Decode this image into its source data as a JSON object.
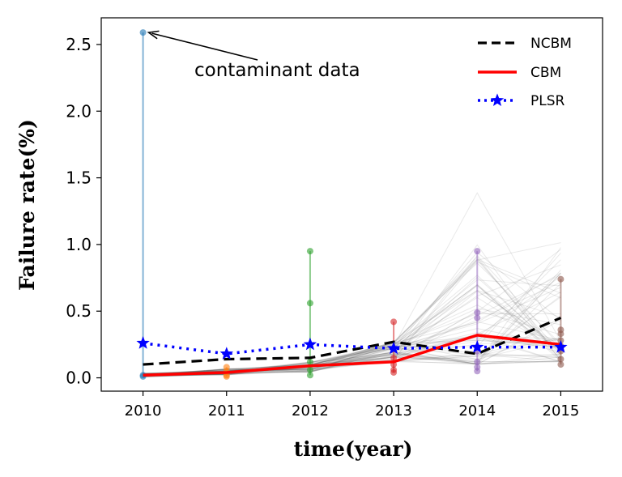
{
  "chart_data": {
    "type": "line",
    "xlabel": "time(year)",
    "ylabel": "Failure rate(%)",
    "x": [
      2010,
      2011,
      2012,
      2013,
      2014,
      2015
    ],
    "xlim": [
      2009.5,
      2015.5
    ],
    "ylim": [
      -0.1,
      2.7
    ],
    "yticks": [
      0.0,
      0.5,
      1.0,
      1.5,
      2.0,
      2.5
    ],
    "ytick_labels": [
      "0.0",
      "0.5",
      "1.0",
      "1.5",
      "2.0",
      "2.5"
    ],
    "xtick_labels": [
      "2010",
      "2011",
      "2012",
      "2013",
      "2014",
      "2015"
    ],
    "grid": false,
    "legend_position": "top-right",
    "series": [
      {
        "name": "NCBM",
        "values": [
          0.1,
          0.14,
          0.15,
          0.27,
          0.18,
          0.45
        ],
        "color": "#000000",
        "style": "dashed"
      },
      {
        "name": "CBM",
        "values": [
          0.02,
          0.04,
          0.09,
          0.12,
          0.32,
          0.25
        ],
        "color": "#ff0000",
        "style": "solid"
      },
      {
        "name": "PLSR",
        "values": [
          0.26,
          0.18,
          0.25,
          0.22,
          0.23,
          0.23
        ],
        "color": "#0000ff",
        "style": "dotted",
        "marker": "star"
      }
    ],
    "scatter_groups": [
      {
        "x": 2010,
        "values": [
          2.59,
          0.02,
          0.01
        ],
        "color": "#1f77b4"
      },
      {
        "x": 2011,
        "values": [
          0.08,
          0.05,
          0.02,
          0.01
        ],
        "color": "#ff7f0e"
      },
      {
        "x": 2012,
        "values": [
          0.95,
          0.56,
          0.12,
          0.06,
          0.02
        ],
        "color": "#2ca02c"
      },
      {
        "x": 2013,
        "values": [
          0.42,
          0.15,
          0.1,
          0.06,
          0.04
        ],
        "color": "#d62728"
      },
      {
        "x": 2014,
        "values": [
          0.95,
          0.49,
          0.45,
          0.2,
          0.12,
          0.08,
          0.05
        ],
        "color": "#9467bd"
      },
      {
        "x": 2015,
        "values": [
          0.74,
          0.36,
          0.33,
          0.28,
          0.24,
          0.2,
          0.14,
          0.1
        ],
        "color": "#8c564b"
      }
    ],
    "background_line_color": "#555555",
    "annotations": [
      {
        "text": "contaminant data",
        "target_x": 2010,
        "target_y": 2.59
      }
    ]
  }
}
